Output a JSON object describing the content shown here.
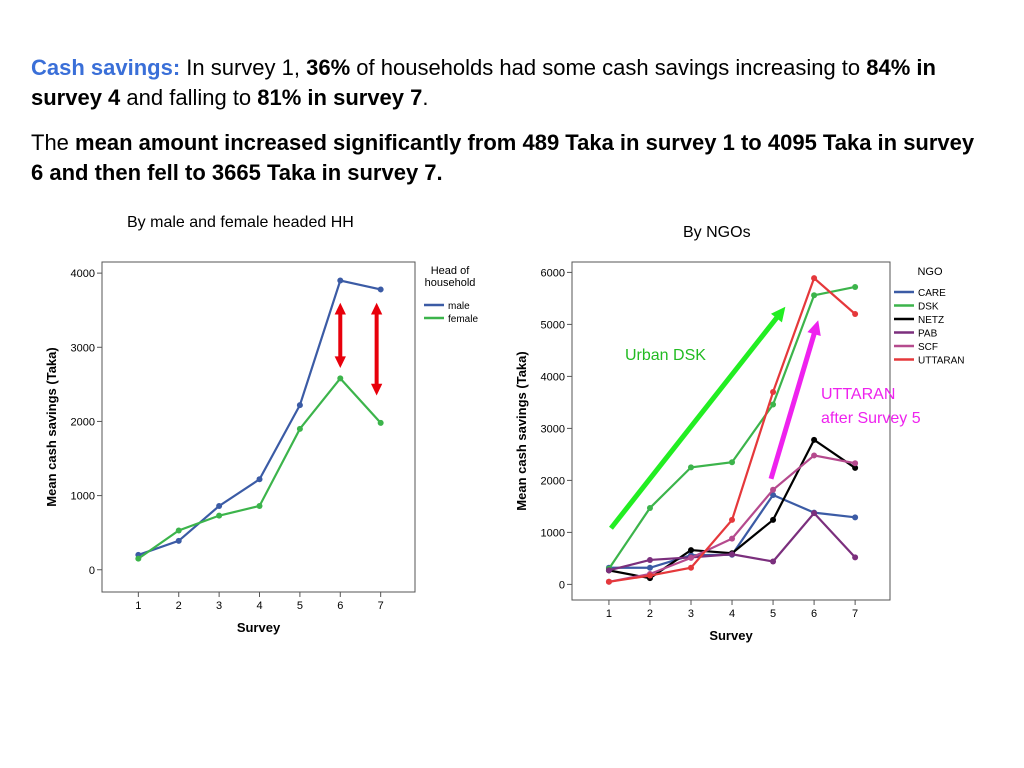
{
  "paragraph1": {
    "label": "Cash savings:",
    "t1": " In survey 1, ",
    "b1": "36%",
    "t2": " of households had some cash savings increasing to ",
    "b2": "84% in survey 4",
    "t3": " and falling to ",
    "b3": "81% in survey 7",
    "t4": "."
  },
  "paragraph2": {
    "t1": "The ",
    "b1": "mean amount increased significantly from 489 Taka in survey 1 to 4095 Taka in survey 6 and then fell to 3665 Taka in survey 7."
  },
  "colors": {
    "accent": "#3a6fd8",
    "male": "#3b5ba5",
    "female": "#3cb44b",
    "CARE": "#3b5ba5",
    "DSK": "#3cb44b",
    "NETZ": "#000000",
    "PAB": "#7b2f7d",
    "SCF": "#b54a8e",
    "UTTARAN": "#e5383b",
    "red_arrow": "#e8000b",
    "green_arrow": "#22ee22",
    "magenta_arrow": "#ee22ee"
  },
  "chart_data": [
    {
      "type": "line",
      "title": "By male and female headed HH",
      "xlabel": "Survey",
      "ylabel": "Mean cash savings (Taka)",
      "x": [
        1,
        2,
        3,
        4,
        5,
        6,
        7
      ],
      "xlim": [
        0.1,
        7.85
      ],
      "ylim": [
        -300,
        4150
      ],
      "yticks": [
        0,
        1000,
        2000,
        3000,
        4000
      ],
      "legend_title": "Head of household",
      "legend_position": "right",
      "series": [
        {
          "name": "male",
          "values": [
            200,
            390,
            860,
            1220,
            2220,
            3900,
            3780
          ]
        },
        {
          "name": "female",
          "values": [
            150,
            530,
            730,
            860,
            1900,
            2580,
            1980
          ]
        }
      ],
      "annotations": [
        {
          "type": "double-arrow",
          "x": 6,
          "y_from": 3600,
          "y_to": 2720
        },
        {
          "type": "double-arrow",
          "x": 6.9,
          "y_from": 3600,
          "y_to": 2350
        }
      ]
    },
    {
      "type": "line",
      "title": "By NGOs",
      "xlabel": "Survey",
      "ylabel": "Mean cash savings (Taka)",
      "x": [
        1,
        2,
        3,
        4,
        5,
        6,
        7
      ],
      "xlim": [
        0.1,
        7.85
      ],
      "ylim": [
        -300,
        6200
      ],
      "yticks": [
        0,
        1000,
        2000,
        3000,
        4000,
        5000,
        6000
      ],
      "legend_title": "NGO",
      "legend_position": "right",
      "series": [
        {
          "name": "CARE",
          "values": [
            320,
            320,
            560,
            570,
            1720,
            1380,
            1290
          ]
        },
        {
          "name": "DSK",
          "values": [
            300,
            1470,
            2250,
            2350,
            3460,
            5560,
            5720
          ]
        },
        {
          "name": "NETZ",
          "values": [
            270,
            120,
            660,
            600,
            1240,
            2780,
            2240
          ]
        },
        {
          "name": "PAB",
          "values": [
            270,
            470,
            520,
            580,
            440,
            1370,
            520
          ]
        },
        {
          "name": "SCF",
          "values": [
            50,
            200,
            510,
            880,
            1820,
            2480,
            2330
          ]
        },
        {
          "name": "UTTARAN",
          "values": [
            50,
            170,
            320,
            1240,
            3700,
            5890,
            5200
          ]
        }
      ],
      "annotations": [
        {
          "type": "arrow",
          "label": "Urban DSK",
          "from": [
            1.05,
            1080
          ],
          "to": [
            5.3,
            5340
          ]
        },
        {
          "type": "arrow",
          "label": "UTTARAN after Survey 5",
          "from": [
            4.95,
            2030
          ],
          "to": [
            6.1,
            5080
          ]
        }
      ]
    }
  ]
}
